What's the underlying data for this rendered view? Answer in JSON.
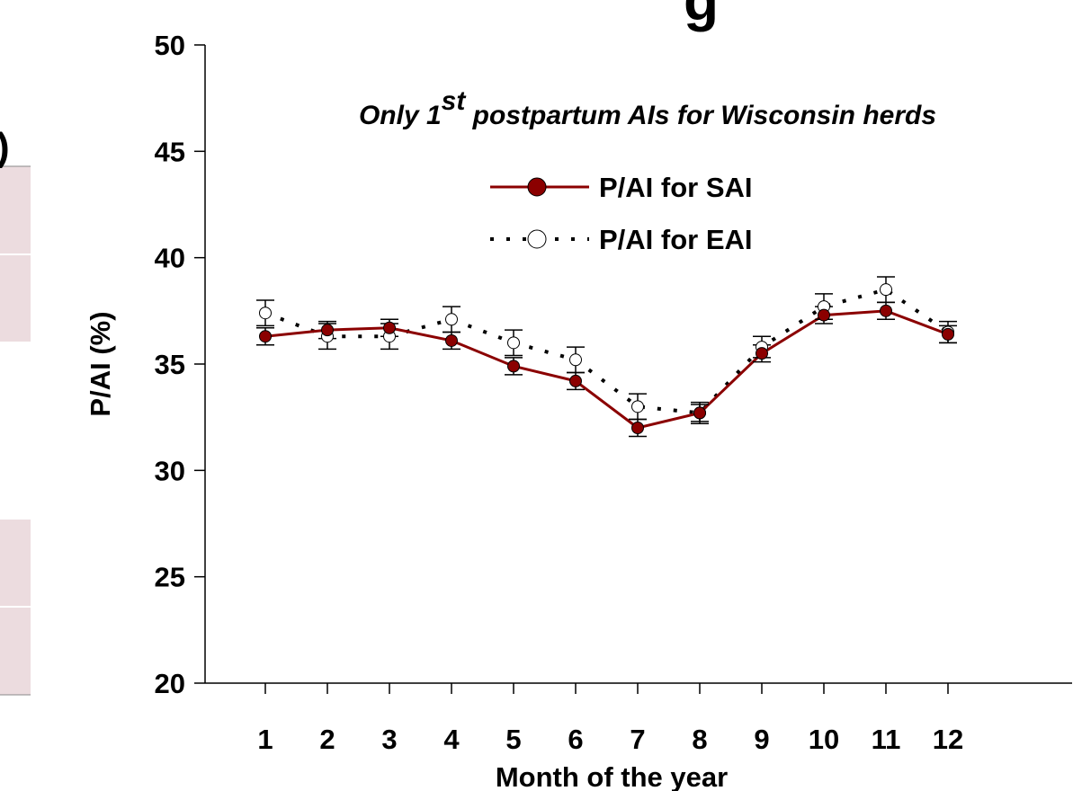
{
  "fragments": {
    "top_title": "g",
    "left_panel": ")"
  },
  "chart_data": {
    "type": "line",
    "subtitle": {
      "pre": "Only 1",
      "sup": "st",
      "post": " postpartum AIs for Wisconsin herds"
    },
    "ylabel": "P/AI (%)",
    "xlabel": "Month of the year",
    "x": [
      1,
      2,
      3,
      4,
      5,
      6,
      7,
      8,
      9,
      10,
      11,
      12
    ],
    "xlim": [
      0,
      14
    ],
    "xticks": [
      1,
      2,
      3,
      4,
      5,
      6,
      7,
      8,
      9,
      10,
      11,
      12
    ],
    "ylim": [
      20,
      50
    ],
    "yticks": [
      20,
      25,
      30,
      35,
      40,
      45,
      50
    ],
    "series": [
      {
        "name": "P/AI for SAI",
        "color": "#8b0000",
        "style": "solid",
        "values": [
          36.3,
          36.6,
          36.7,
          36.1,
          34.9,
          34.2,
          32.0,
          32.7,
          35.5,
          37.3,
          37.5,
          36.4
        ],
        "errors": [
          0.4,
          0.4,
          0.4,
          0.4,
          0.4,
          0.4,
          0.4,
          0.4,
          0.4,
          0.4,
          0.4,
          0.4
        ]
      },
      {
        "name": "P/AI for EAI",
        "color": "#000000",
        "style": "dotted",
        "values": [
          37.4,
          36.3,
          36.3,
          37.1,
          36.0,
          35.2,
          33.0,
          32.7,
          35.8,
          37.7,
          38.5,
          36.5
        ],
        "errors": [
          0.6,
          0.6,
          0.6,
          0.6,
          0.6,
          0.6,
          0.6,
          0.5,
          0.5,
          0.6,
          0.6,
          0.5
        ]
      }
    ]
  }
}
